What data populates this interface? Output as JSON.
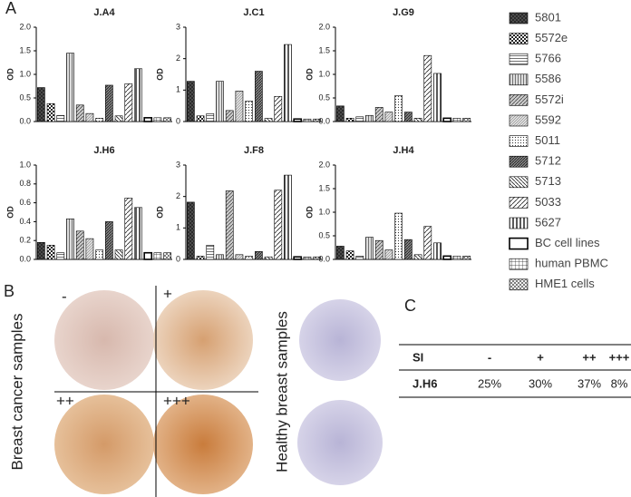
{
  "panels": {
    "a": "A",
    "b": "B",
    "c": "C"
  },
  "legend": {
    "items": [
      {
        "name": "5801",
        "pattern": "crosshatch-dark"
      },
      {
        "name": "5572e",
        "pattern": "checker"
      },
      {
        "name": "5766",
        "pattern": "horizontal"
      },
      {
        "name": "5586",
        "pattern": "vertical"
      },
      {
        "name": "5572i",
        "pattern": "diagonal"
      },
      {
        "name": "5592",
        "pattern": "diagonal-fine"
      },
      {
        "name": "5011",
        "pattern": "dots"
      },
      {
        "name": "5712",
        "pattern": "diagonal-dense"
      },
      {
        "name": "5713",
        "pattern": "back-diagonal"
      },
      {
        "name": "5033",
        "pattern": "diagonal-wide"
      },
      {
        "name": "5627",
        "pattern": "vertical-thick"
      },
      {
        "name": "BC cell lines",
        "pattern": "bordered"
      },
      {
        "name": "human PBMC",
        "pattern": "grid"
      },
      {
        "name": "HME1 cells",
        "pattern": "x-hatch"
      }
    ]
  },
  "chart_data": [
    {
      "type": "bar",
      "title": "J.A4",
      "ylabel": "OD",
      "ylim": [
        0,
        2
      ],
      "yticks": [
        {
          "value": 0,
          "label": "0.0"
        },
        0.5,
        {
          "value": 1,
          "label": "1.0"
        },
        1.5,
        {
          "value": 2,
          "label": "2.0"
        }
      ],
      "values": [
        0.72,
        0.38,
        0.13,
        1.45,
        0.35,
        0.17,
        0.07,
        0.77,
        0.12,
        0.8,
        1.12,
        0.08,
        0.08,
        0.08
      ]
    },
    {
      "type": "bar",
      "title": "J.C1",
      "ylabel": "OD",
      "ylim": [
        0,
        3
      ],
      "yticks": [
        0,
        1,
        2,
        3
      ],
      "values": [
        1.28,
        0.18,
        0.25,
        1.28,
        0.35,
        0.97,
        0.65,
        1.6,
        0.1,
        0.8,
        2.45,
        0.08,
        0.08,
        0.08
      ]
    },
    {
      "type": "bar",
      "title": "J.G9",
      "ylabel": "OD",
      "ylim": [
        0,
        2
      ],
      "yticks": [
        {
          "value": 0,
          "label": "0.0"
        },
        0.5,
        {
          "value": 1,
          "label": "1.0"
        },
        1.5,
        {
          "value": 2,
          "label": "2.0"
        }
      ],
      "values": [
        0.33,
        0.07,
        0.1,
        0.13,
        0.3,
        0.2,
        0.55,
        0.2,
        0.07,
        1.4,
        1.02,
        0.07,
        0.07,
        0.07
      ]
    },
    {
      "type": "bar",
      "title": "J.H6",
      "ylabel": "OD",
      "ylim": [
        0,
        1
      ],
      "yticks": [
        {
          "value": 0,
          "label": "0.0"
        },
        0.2,
        0.4,
        0.6,
        0.8,
        {
          "value": 1,
          "label": "1.0"
        }
      ],
      "values": [
        0.18,
        0.15,
        0.07,
        0.43,
        0.3,
        0.22,
        0.1,
        0.4,
        0.1,
        0.65,
        0.55,
        0.07,
        0.07,
        0.07
      ]
    },
    {
      "type": "bar",
      "title": "J.F8",
      "ylabel": "OD",
      "ylim": [
        0,
        3
      ],
      "yticks": [
        0,
        1,
        2,
        3
      ],
      "values": [
        1.82,
        0.1,
        0.45,
        0.15,
        2.18,
        0.15,
        0.1,
        0.25,
        0.08,
        2.2,
        2.68,
        0.08,
        0.08,
        0.08
      ]
    },
    {
      "type": "bar",
      "title": "J.H4",
      "ylabel": "OD",
      "ylim": [
        0,
        2
      ],
      "yticks": [
        {
          "value": 0,
          "label": "0.0"
        },
        0.5,
        {
          "value": 1,
          "label": "1.0"
        },
        1.5,
        {
          "value": 2,
          "label": "2.0"
        }
      ],
      "values": [
        0.28,
        0.18,
        0.07,
        0.47,
        0.4,
        0.2,
        0.98,
        0.42,
        0.1,
        0.7,
        0.35,
        0.07,
        0.07,
        0.07
      ]
    }
  ],
  "panel_b": {
    "cancer_label": "Breast cancer samples",
    "healthy_label": "Healthy breast samples",
    "scores": [
      "-",
      "+",
      "++",
      "+++"
    ]
  },
  "table": {
    "header": [
      "SI",
      "-",
      "+",
      "++",
      "+++"
    ],
    "rows": [
      [
        "J.H6",
        "25%",
        "30%",
        "37%",
        "8%"
      ]
    ]
  }
}
